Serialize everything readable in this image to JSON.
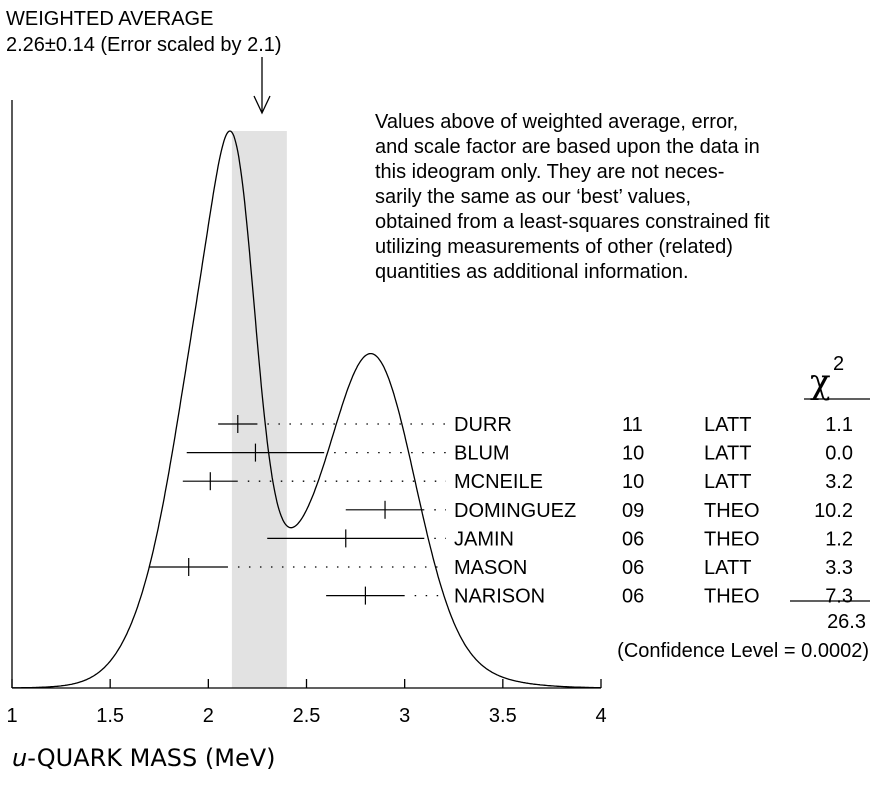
{
  "chart_data": {
    "type": "ideogram",
    "title_line1": "WEIGHTED AVERAGE",
    "title_line2": "2.26±0.14 (Error scaled by 2.1)",
    "average": {
      "value": 2.26,
      "error": 0.14
    },
    "xlabel_italic": "u",
    "xlabel_rest": "-QUARK MASS (MeV)",
    "xlim": [
      1,
      4
    ],
    "xticks": [
      "1",
      "1.5",
      "2",
      "2.5",
      "3",
      "3.5",
      "4"
    ],
    "xtick_values": [
      1,
      1.5,
      2,
      2.5,
      3,
      3.5,
      4
    ],
    "note_lines": [
      "Values above of weighted average, error,",
      "and scale factor are based upon the data in",
      "this ideogram only.  They are not neces-",
      "sarily the same as our ‘best’ values,",
      "obtained from a least-squares constrained fit",
      "utilizing measurements of other (related)",
      "quantities as additional information."
    ],
    "chi2_header": "χ",
    "chi2_sup": "2",
    "measurements": [
      {
        "name": "DURR",
        "year": "11",
        "tech": "LATT",
        "chi2": "1.1",
        "value": 2.15,
        "low": 2.05,
        "high": 2.25
      },
      {
        "name": "BLUM",
        "year": "10",
        "tech": "LATT",
        "chi2": "0.0",
        "value": 2.24,
        "low": 1.89,
        "high": 2.59
      },
      {
        "name": "MCNEILE",
        "year": "10",
        "tech": "LATT",
        "chi2": "3.2",
        "value": 2.01,
        "low": 1.87,
        "high": 2.15
      },
      {
        "name": "DOMINGUEZ",
        "year": "09",
        "tech": "THEO",
        "chi2": "10.2",
        "value": 2.9,
        "low": 2.7,
        "high": 3.1
      },
      {
        "name": "JAMIN",
        "year": "06",
        "tech": "THEO",
        "chi2": "1.2",
        "value": 2.7,
        "low": 2.3,
        "high": 3.1
      },
      {
        "name": "MASON",
        "year": "06",
        "tech": "LATT",
        "chi2": "3.3",
        "value": 1.9,
        "low": 1.7,
        "high": 2.1
      },
      {
        "name": "NARISON",
        "year": "06",
        "tech": "THEO",
        "chi2": "7.3",
        "value": 2.8,
        "low": 2.6,
        "high": 3.0
      }
    ],
    "chi2_total": "26.3",
    "confidence_level": "(Confidence Level = 0.0002)"
  }
}
